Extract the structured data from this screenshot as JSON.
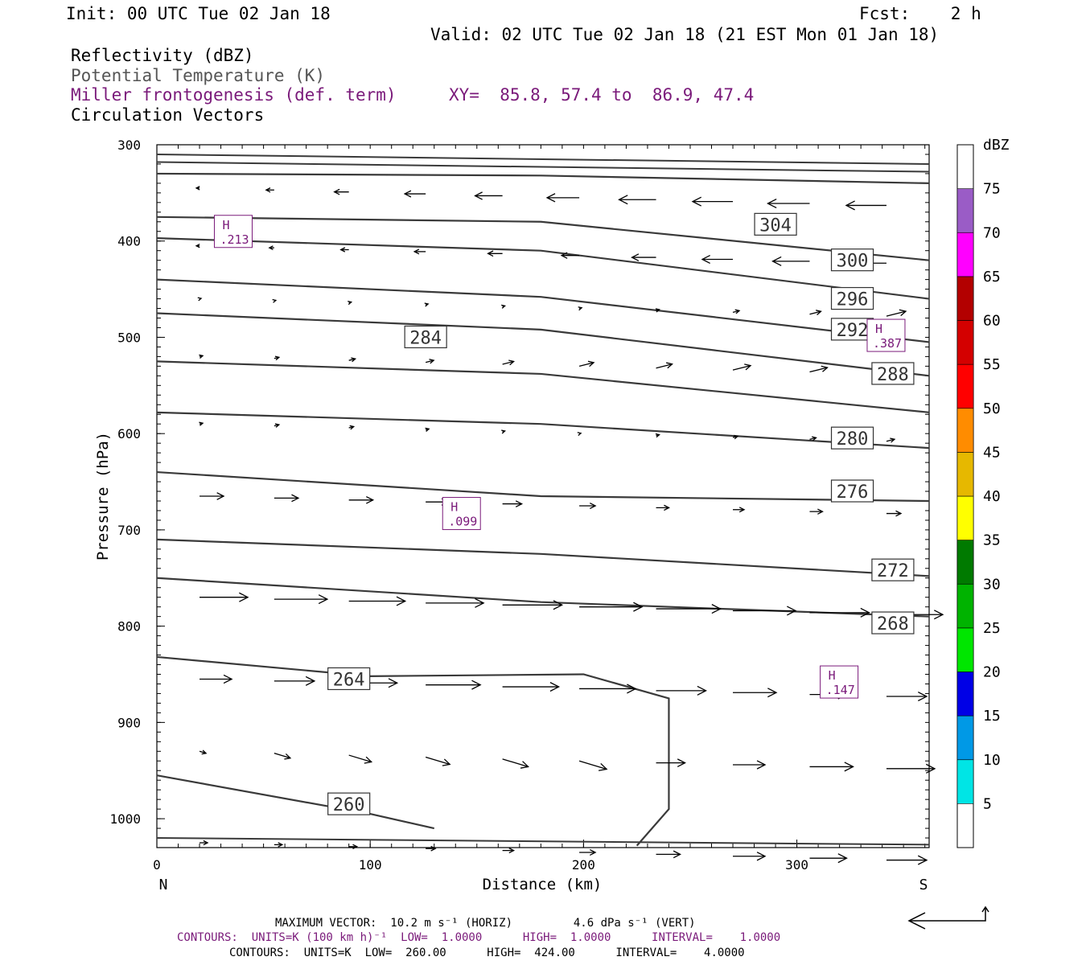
{
  "header": {
    "init": "Init: 00 UTC Tue 02 Jan 18",
    "fcst": "Fcst:    2 h",
    "valid": "Valid: 02 UTC Tue 02 Jan 18 (21 EST Mon 01 Jan 18)",
    "field1": "Reflectivity (dBZ)",
    "field2": "Potential Temperature (K)",
    "field3": "Miller frontogenesis (def. term)",
    "xy": "XY=  85.8, 57.4 to  86.9, 47.4",
    "field4": "Circulation Vectors"
  },
  "footer": {
    "max_vector": "MAXIMUM VECTOR:  10.2 m s⁻¹ (HORIZ)         4.6 dPa s⁻¹ (VERT)",
    "contours_purple": "CONTOURS:  UNITS=K (100 km h)⁻¹  LOW=  1.0000      HIGH=  1.0000      INTERVAL=    1.0000",
    "contours_black": "CONTOURS:  UNITS=K  LOW=  260.00      HIGH=  424.00      INTERVAL=    4.0000"
  },
  "colors": {
    "theta": "#3a3a3a",
    "fronto": "#7a1a7a",
    "scale": [
      "#00e5e5",
      "#0099e6",
      "#0000e6",
      "#00e600",
      "#00b300",
      "#007a00",
      "#ffff00",
      "#e6b800",
      "#ff8c00",
      "#ff0000",
      "#d40000",
      "#b30000",
      "#ff00ff",
      "#9a5cc6"
    ]
  },
  "chart_data": {
    "type": "line",
    "xlabel": "Distance (km)",
    "ylabel": "Pressure (hPa)",
    "xlim": [
      0,
      362
    ],
    "ylim": [
      300,
      1030
    ],
    "x_ticks": [
      "0",
      "100",
      "200",
      "300"
    ],
    "y_ticks": [
      "300",
      "400",
      "500",
      "600",
      "700",
      "800",
      "900",
      "1000"
    ],
    "left_end_label": "N",
    "right_end_label": "S",
    "isentropes": [
      {
        "label": "304",
        "points": [
          [
            0,
            330
          ],
          [
            180,
            332
          ],
          [
            362,
            340
          ]
        ],
        "label_at": [
          290,
          383
        ]
      },
      {
        "label": "300",
        "points": [
          [
            0,
            375
          ],
          [
            180,
            380
          ],
          [
            362,
            420
          ]
        ],
        "label_at": [
          326,
          420
        ]
      },
      {
        "label": "296",
        "points": [
          [
            0,
            397
          ],
          [
            180,
            410
          ],
          [
            362,
            460
          ]
        ],
        "label_at": [
          326,
          460
        ]
      },
      {
        "label": "292",
        "points": [
          [
            0,
            440
          ],
          [
            180,
            458
          ],
          [
            362,
            505
          ]
        ],
        "label_at": [
          326,
          492
        ]
      },
      {
        "label": "288",
        "points": [
          [
            0,
            475
          ],
          [
            180,
            492
          ],
          [
            362,
            540
          ]
        ],
        "label_at": [
          345,
          538
        ]
      },
      {
        "label": "284",
        "points": [
          [
            0,
            525
          ],
          [
            180,
            538
          ],
          [
            362,
            578
          ]
        ],
        "label_at": [
          126,
          500
        ]
      },
      {
        "label": "280",
        "points": [
          [
            0,
            578
          ],
          [
            180,
            590
          ],
          [
            362,
            615
          ]
        ],
        "label_at": [
          326,
          605
        ]
      },
      {
        "label": "276",
        "points": [
          [
            0,
            640
          ],
          [
            180,
            665
          ],
          [
            362,
            670
          ]
        ],
        "label_at": [
          326,
          660
        ]
      },
      {
        "label": "272",
        "points": [
          [
            0,
            710
          ],
          [
            180,
            725
          ],
          [
            362,
            748
          ]
        ],
        "label_at": [
          345,
          742
        ]
      },
      {
        "label": "268",
        "points": [
          [
            0,
            750
          ],
          [
            180,
            775
          ],
          [
            362,
            790
          ]
        ],
        "label_at": [
          345,
          797
        ]
      },
      {
        "label": "264",
        "points": [
          [
            0,
            832
          ],
          [
            100,
            852
          ],
          [
            200,
            850
          ],
          [
            240,
            875
          ],
          [
            240,
            990
          ],
          [
            225,
            1028
          ]
        ],
        "label_at": [
          90,
          855
        ]
      },
      {
        "label": "260",
        "points": [
          [
            0,
            955
          ],
          [
            100,
            995
          ],
          [
            130,
            1010
          ]
        ],
        "label_at": [
          90,
          985
        ]
      }
    ],
    "fronto_maxima": [
      {
        "label": "H",
        "value": ".213",
        "x": 36,
        "p": 390
      },
      {
        "label": "H",
        "value": ".387",
        "x": 342,
        "p": 498
      },
      {
        "label": "H",
        "value": ".099",
        "x": 143,
        "p": 683
      },
      {
        "label": "H",
        "value": ".147",
        "x": 320,
        "p": 858
      }
    ],
    "legend": {
      "unit": "dBZ",
      "ticks": [
        "5",
        "10",
        "15",
        "20",
        "25",
        "30",
        "35",
        "40",
        "45",
        "50",
        "55",
        "60",
        "65",
        "70",
        "75"
      ]
    }
  }
}
